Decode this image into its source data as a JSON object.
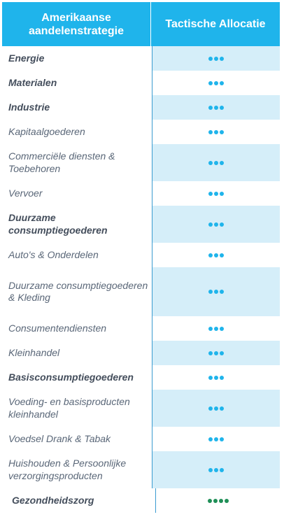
{
  "header": {
    "col1": "Amerikaanse aandelenstrategie",
    "col2": "Tactische Allocatie"
  },
  "colors": {
    "blue_dot": "#1fb4eb",
    "green_dot": "#1f8f57",
    "header_bg": "#1fb4eb",
    "shade": "#d5eef9"
  },
  "rows": [
    {
      "label": "Energie",
      "bold": true,
      "dots": 3,
      "dot_color": "blue"
    },
    {
      "label": "Materialen",
      "bold": true,
      "dots": 3,
      "dot_color": "blue"
    },
    {
      "label": "Industrie",
      "bold": true,
      "dots": 3,
      "dot_color": "blue"
    },
    {
      "label": "Kapitaalgoederen",
      "bold": false,
      "dots": 3,
      "dot_color": "blue"
    },
    {
      "label": "Commerciële diensten & Toebehoren",
      "bold": false,
      "dots": 3,
      "dot_color": "blue"
    },
    {
      "label": "Vervoer",
      "bold": false,
      "dots": 3,
      "dot_color": "blue"
    },
    {
      "label": "Duurzame consumptiegoederen",
      "bold": true,
      "dots": 3,
      "dot_color": "blue"
    },
    {
      "label": "Auto's & Onderdelen",
      "bold": false,
      "dots": 3,
      "dot_color": "blue"
    },
    {
      "label": "Duurzame consumptiegoederen & Kleding",
      "bold": false,
      "dots": 3,
      "dot_color": "blue"
    },
    {
      "label": "Consumentendiensten",
      "bold": false,
      "dots": 3,
      "dot_color": "blue"
    },
    {
      "label": "Kleinhandel",
      "bold": false,
      "dots": 3,
      "dot_color": "blue"
    },
    {
      "label": "Basisconsumptiegoederen",
      "bold": true,
      "dots": 3,
      "dot_color": "blue"
    },
    {
      "label": "Voeding- en basisproducten kleinhandel",
      "bold": false,
      "dots": 3,
      "dot_color": "blue"
    },
    {
      "label": "Voedsel Drank & Tabak",
      "bold": false,
      "dots": 3,
      "dot_color": "blue"
    },
    {
      "label": "Huishouden & Persoonlijke verzorgingsproducten",
      "bold": false,
      "dots": 3,
      "dot_color": "blue"
    },
    {
      "label": "Gezondheidszorg",
      "bold": true,
      "dots": 4,
      "dot_color": "green"
    }
  ]
}
